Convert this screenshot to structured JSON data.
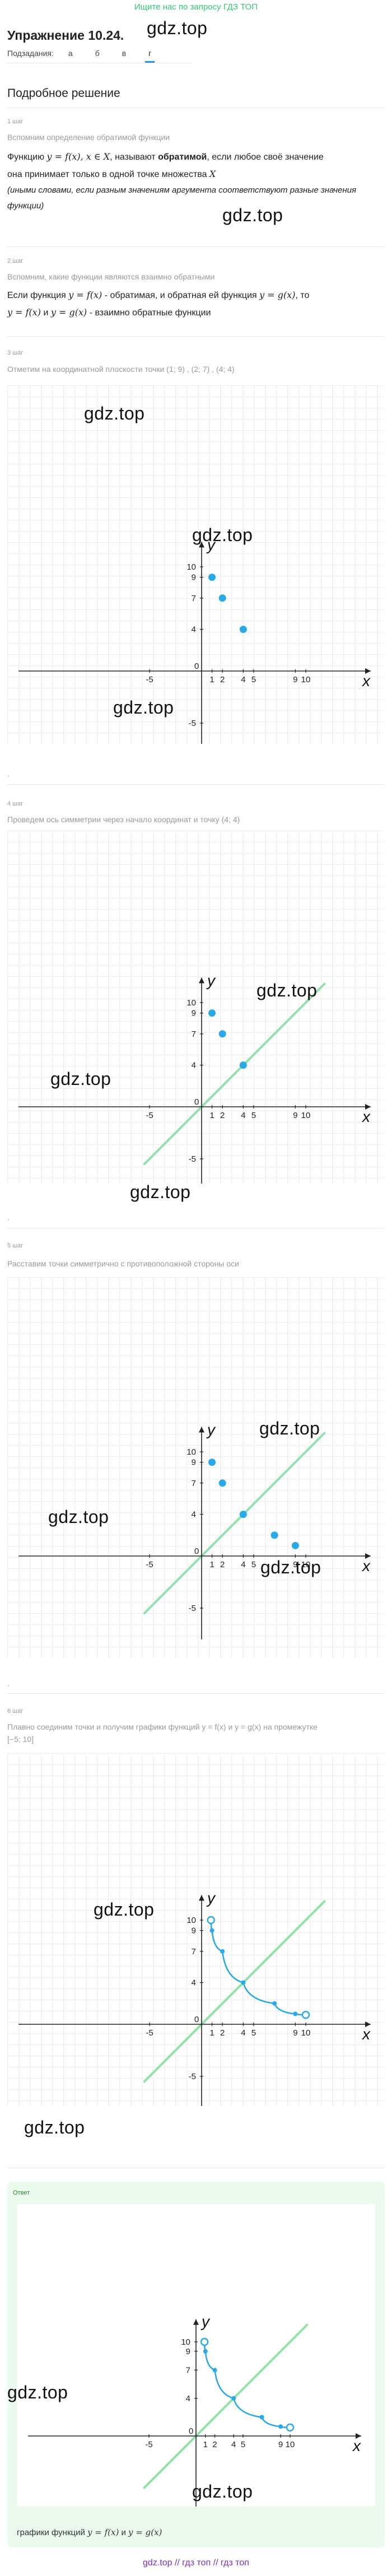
{
  "header": {
    "top_link": "Ищите нас по запросу ГДЗ ТОП",
    "title": "Упражнение 10.24.",
    "watermark": "gdz.top"
  },
  "subtasks": {
    "label": "Подзадания:",
    "options": [
      "а",
      "б",
      "в",
      "г"
    ],
    "active": "г"
  },
  "solution": {
    "heading": "Подробное решение",
    "watermark": "gdz.top",
    "steps": [
      {
        "label": "1 шаг",
        "hint": "Вспомним определение обратимой функции",
        "text_a": "Функцию ",
        "math_a": "y = f(x), x ∈ X",
        "text_b": ", называют ",
        "bold": "обратимой",
        "text_c": ", если любое своё значение",
        "text_d": "она принимает только в одной точке множества ",
        "math_d": "X",
        "note": "(иными словами, если разным значениям аргумента соответствуют разные значения функции)"
      },
      {
        "label": "2 шаг",
        "hint": "Вспомним, какие функции являются взаимно обратными",
        "text_a": "Если функция ",
        "math_a": "y = f(x)",
        "text_b": " - обратимая, и обратная ей функция ",
        "math_b": "y = g(x)",
        "text_c": ", то",
        "math_c": "y = f(x)",
        "text_d": " и ",
        "math_d": "y = g(x)",
        "text_e": " - взаимно обратные функции"
      },
      {
        "label": "3 шаг",
        "hint": "Отметим на координатной плоскости точки (1; 9) , (2; 7) , (4; 4)"
      },
      {
        "label": "4 шаг",
        "hint": "Проведем ось симметрии через начало координат и точку (4; 4)"
      },
      {
        "label": "5 шаг",
        "hint": "Расставим точки симметрично с противоположной стороны оси"
      },
      {
        "label": "6 шаг",
        "hint": "Плавно соединим точки и получим графики функций y = f(x) и y = g(x) на промежутке [−5; 10]"
      }
    ],
    "bullet": "."
  },
  "chart_data": [
    {
      "type": "scatter",
      "title": "",
      "xlabel": "x",
      "ylabel": "y",
      "xlim": [
        -5,
        10
      ],
      "ylim": [
        -5,
        10
      ],
      "x_ticks": [
        "-5",
        "1",
        "2",
        "4",
        "5",
        "9",
        "10"
      ],
      "y_ticks": [
        "10",
        "9",
        "7",
        "4",
        "-5"
      ],
      "origin_label": "0",
      "series": [
        {
          "points": [
            [
              1,
              9
            ],
            [
              2,
              7
            ],
            [
              4,
              4
            ]
          ]
        }
      ]
    },
    {
      "type": "scatter",
      "title": "",
      "xlabel": "x",
      "ylabel": "y",
      "xlim": [
        -5,
        10
      ],
      "ylim": [
        -5,
        10
      ],
      "x_ticks": [
        "-5",
        "1",
        "2",
        "4",
        "5",
        "9",
        "10"
      ],
      "y_ticks": [
        "10",
        "9",
        "7",
        "4",
        "-5"
      ],
      "origin_label": "0",
      "symmetry_line": "y = x",
      "series": [
        {
          "points": [
            [
              1,
              9
            ],
            [
              2,
              7
            ],
            [
              4,
              4
            ]
          ]
        }
      ]
    },
    {
      "type": "scatter",
      "title": "",
      "xlabel": "x",
      "ylabel": "y",
      "xlim": [
        -5,
        10
      ],
      "ylim": [
        -5,
        10
      ],
      "x_ticks": [
        "-5",
        "1",
        "2",
        "4",
        "5",
        "9",
        "10"
      ],
      "y_ticks": [
        "10",
        "9",
        "7",
        "4",
        "-5"
      ],
      "origin_label": "0",
      "symmetry_line": "y = x",
      "series": [
        {
          "points": [
            [
              1,
              9
            ],
            [
              2,
              7
            ],
            [
              4,
              4
            ],
            [
              7,
              2
            ],
            [
              9,
              1
            ]
          ]
        }
      ]
    },
    {
      "type": "line",
      "title": "",
      "xlabel": "x",
      "ylabel": "y",
      "xlim": [
        -5,
        10
      ],
      "ylim": [
        -5,
        10
      ],
      "x_ticks": [
        "-5",
        "1",
        "2",
        "4",
        "5",
        "9",
        "10"
      ],
      "y_ticks": [
        "10",
        "9",
        "7",
        "4",
        "-5"
      ],
      "origin_label": "0",
      "symmetry_line": "y = x",
      "series": [
        {
          "points": [
            [
              0.9,
              10
            ],
            [
              1,
              9
            ],
            [
              2,
              7
            ],
            [
              4,
              4
            ],
            [
              7,
              2
            ],
            [
              9,
              1
            ],
            [
              10,
              0.9
            ]
          ]
        }
      ],
      "open_endpoints": [
        [
          0.9,
          10
        ],
        [
          10,
          0.9
        ]
      ]
    },
    {
      "type": "line",
      "title": "",
      "xlabel": "x",
      "ylabel": "y",
      "xlim": [
        -5,
        10
      ],
      "ylim": [
        -5,
        10
      ],
      "x_ticks": [
        "-5",
        "1",
        "2",
        "4",
        "5",
        "9",
        "10"
      ],
      "y_ticks": [
        "10",
        "9",
        "7",
        "4"
      ],
      "origin_label": "0",
      "symmetry_line": "y = x",
      "series": [
        {
          "points": [
            [
              0.9,
              10
            ],
            [
              1,
              9
            ],
            [
              2,
              7
            ],
            [
              4,
              4
            ],
            [
              7,
              2
            ],
            [
              9,
              1
            ],
            [
              10,
              0.9
            ]
          ]
        }
      ],
      "open_endpoints": [
        [
          0.9,
          10
        ],
        [
          10,
          0.9
        ]
      ]
    }
  ],
  "answer": {
    "label": "Ответ",
    "caption_a": "графики функций ",
    "math_a": "y = f(x)",
    "caption_b": " и ",
    "math_b": "y = g(x)"
  },
  "footer": {
    "text": "gdz.top // гдз топ // гдз топ"
  },
  "colors": {
    "accent": "#2196f3",
    "point": "#29a9e8",
    "symmetry": "#8fe3a8",
    "answer_bg": "#eafbee",
    "brand_green": "#2ecc71",
    "footer": "#7a2fd0"
  }
}
